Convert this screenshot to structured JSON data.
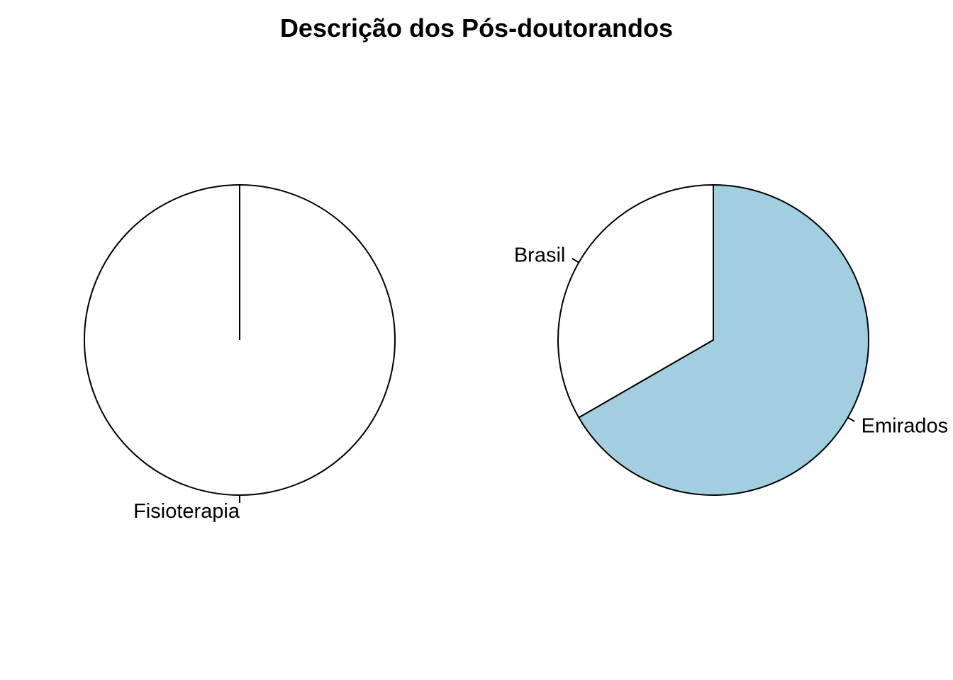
{
  "title": "Descrição dos Pós-doutorandos",
  "chart_data": [
    {
      "type": "pie",
      "labels": [
        "Fisioterapia"
      ],
      "values": [
        1
      ],
      "colors": [
        "#ffffff"
      ]
    },
    {
      "type": "pie",
      "labels": [
        "Brasil",
        "Emirados"
      ],
      "values": [
        1,
        2
      ],
      "colors": [
        "#ffffff",
        "#a1cfe0"
      ]
    }
  ]
}
